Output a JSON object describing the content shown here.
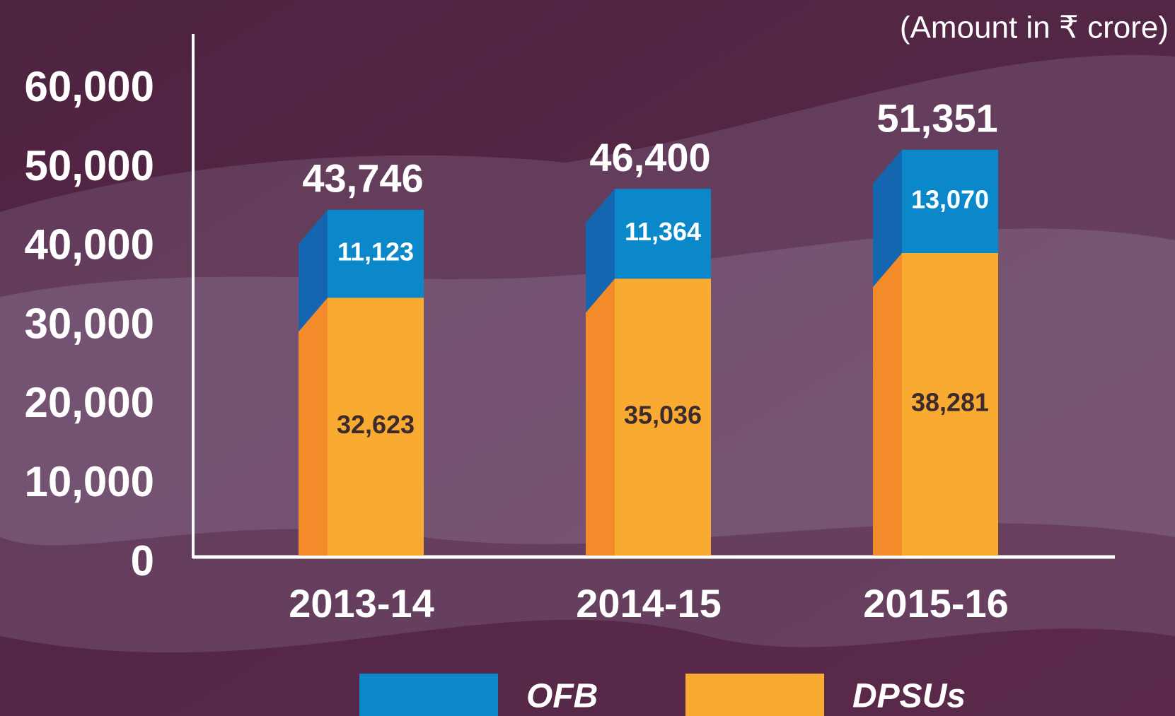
{
  "chart_data": {
    "type": "stacked_bar",
    "subtitle": "(Amount in ₹ crore)",
    "categories": [
      "2013-14",
      "2014-15",
      "2015-16"
    ],
    "series": [
      {
        "name": "DPSUs",
        "color": "#f9aa31",
        "side_color": "#f38b2b",
        "values": [
          32623,
          35036,
          38281
        ],
        "value_labels": [
          "32,623",
          "35,036",
          "38,281"
        ]
      },
      {
        "name": "OFB",
        "color": "#0b88ca",
        "side_color": "#1466b1",
        "values": [
          11123,
          11364,
          13070
        ],
        "value_labels": [
          "11,123",
          "11,364",
          "13,070"
        ]
      }
    ],
    "totals": [
      43746,
      46400,
      51351
    ],
    "total_labels": [
      "43,746",
      "46,400",
      "51,351"
    ],
    "ylim": [
      0,
      66000
    ],
    "yticks": [
      0,
      {
        "value": 10000,
        "label": "10,000"
      },
      {
        "value": 20000,
        "label": "20,000"
      },
      {
        "value": 30000,
        "label": "30,000"
      },
      {
        "value": 40000,
        "label": "40,000"
      },
      {
        "value": 50000,
        "label": "50,000"
      },
      {
        "value": 60000,
        "label": "60,000"
      }
    ],
    "grid": false
  }
}
